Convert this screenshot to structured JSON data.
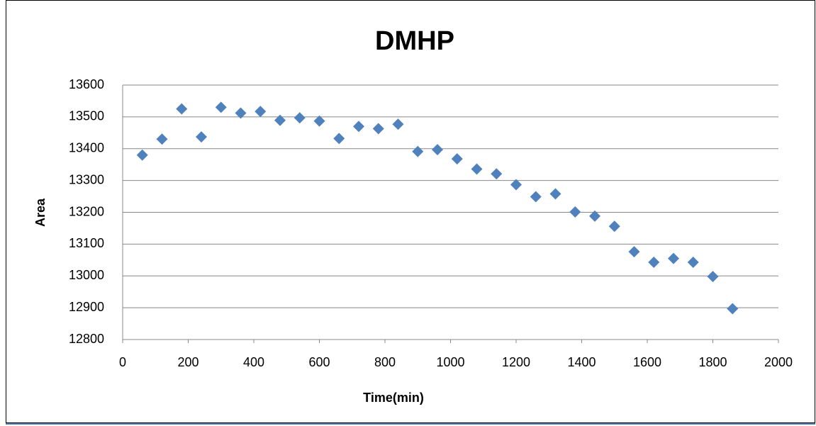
{
  "chart_data": {
    "type": "scatter",
    "title": "DMHP",
    "x_label": "Time(min)",
    "y_label": "Area",
    "series": [
      {
        "name": "DMHP",
        "color": "#4f81bd",
        "x": [
          60,
          120,
          180,
          240,
          300,
          360,
          420,
          480,
          540,
          600,
          660,
          720,
          780,
          840,
          900,
          960,
          1020,
          1080,
          1140,
          1200,
          1260,
          1320,
          1380,
          1440,
          1500,
          1560,
          1620,
          1680,
          1740,
          1800,
          1860
        ],
        "values": [
          13380,
          13430,
          13525,
          13437,
          13530,
          13512,
          13517,
          13489,
          13497,
          13487,
          13432,
          13470,
          13463,
          13477,
          13391,
          13397,
          13368,
          13336,
          13321,
          13287,
          13249,
          13258,
          13201,
          13188,
          13156,
          13076,
          13043,
          13055,
          13043,
          12998,
          12897
        ]
      }
    ],
    "xlim": [
      0,
      2000
    ],
    "xticks": [
      0,
      200,
      400,
      600,
      800,
      1000,
      1200,
      1400,
      1600,
      1800,
      2000
    ],
    "ylim": [
      12800,
      13600
    ],
    "yticks": [
      12800,
      12900,
      13000,
      13100,
      13200,
      13300,
      13400,
      13500,
      13600
    ],
    "grid": true
  }
}
